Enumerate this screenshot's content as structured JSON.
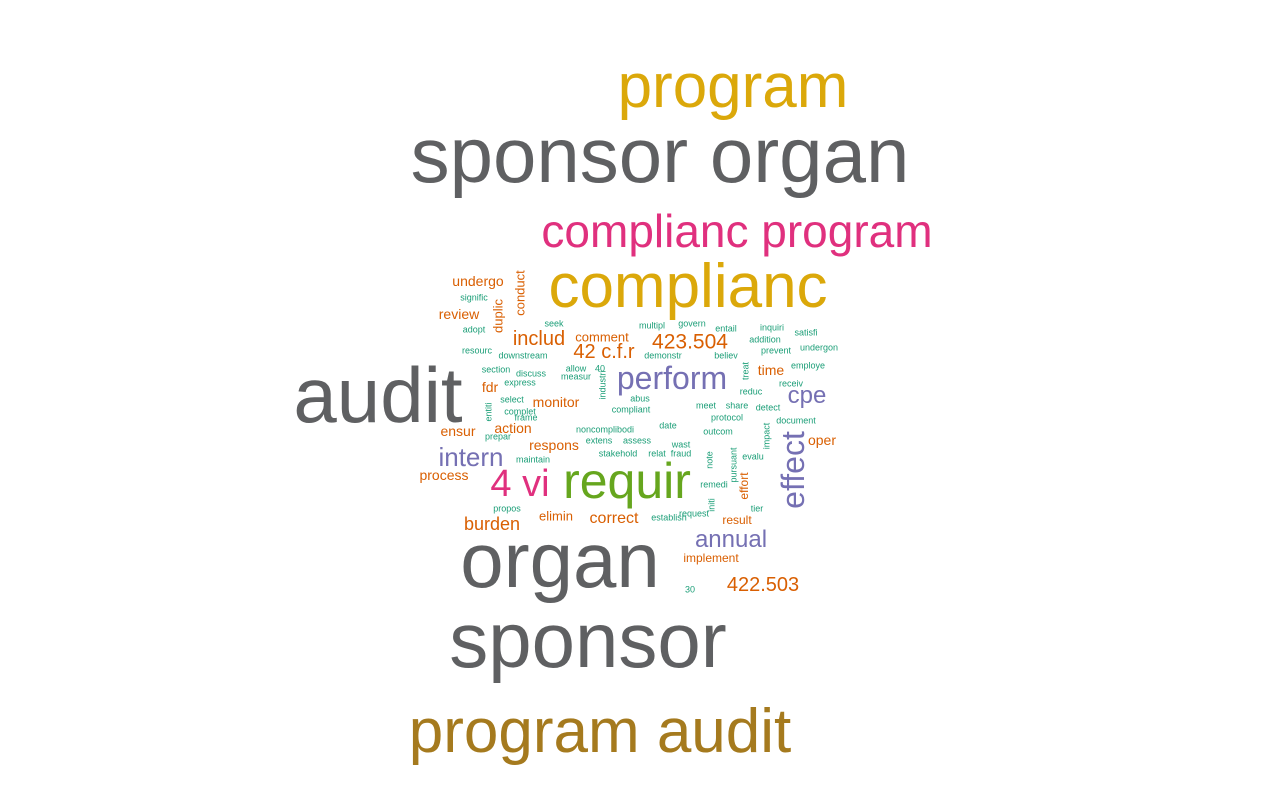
{
  "palette": {
    "gray": "#5f6062",
    "gold": "#dba80a",
    "brown": "#a57a1e",
    "pink": "#e0307e",
    "green": "#66a61e",
    "purple": "#7570b3",
    "orange": "#d95f02",
    "teal": "#1b9e77"
  },
  "words": [
    {
      "text": "sponsor organ",
      "color": "gray"
    },
    {
      "text": "audit",
      "color": "gray"
    },
    {
      "text": "organ",
      "color": "gray"
    },
    {
      "text": "sponsor",
      "color": "gray"
    },
    {
      "text": "program",
      "color": "gold"
    },
    {
      "text": "complianc",
      "color": "gold"
    },
    {
      "text": "program audit",
      "color": "brown"
    },
    {
      "text": "complianc program",
      "color": "pink"
    },
    {
      "text": "requir",
      "color": "green"
    },
    {
      "text": "4 vi",
      "color": "pink"
    },
    {
      "text": "perform",
      "color": "purple"
    },
    {
      "text": "effect",
      "color": "purple"
    },
    {
      "text": "intern",
      "color": "purple"
    },
    {
      "text": "cpe",
      "color": "purple"
    },
    {
      "text": "annual",
      "color": "purple"
    },
    {
      "text": "423.504",
      "color": "orange"
    },
    {
      "text": "42 c.f.r",
      "color": "orange"
    },
    {
      "text": "includ",
      "color": "orange"
    },
    {
      "text": "422.503",
      "color": "orange"
    },
    {
      "text": "burden",
      "color": "orange"
    },
    {
      "text": "correct",
      "color": "orange"
    },
    {
      "text": "undergo",
      "color": "orange"
    },
    {
      "text": "review",
      "color": "orange"
    },
    {
      "text": "duplic",
      "color": "orange"
    },
    {
      "text": "conduct",
      "color": "orange"
    },
    {
      "text": "fdr",
      "color": "orange"
    },
    {
      "text": "monitor",
      "color": "orange"
    },
    {
      "text": "action",
      "color": "orange"
    },
    {
      "text": "ensur",
      "color": "orange"
    },
    {
      "text": "respons",
      "color": "orange"
    },
    {
      "text": "process",
      "color": "orange"
    },
    {
      "text": "time",
      "color": "orange"
    },
    {
      "text": "oper",
      "color": "orange"
    },
    {
      "text": "comment",
      "color": "orange"
    },
    {
      "text": "elimin",
      "color": "orange"
    },
    {
      "text": "result",
      "color": "orange"
    },
    {
      "text": "implement",
      "color": "orange"
    },
    {
      "text": "effort",
      "color": "orange"
    },
    {
      "text": "signific",
      "color": "teal"
    },
    {
      "text": "adopt",
      "color": "teal"
    },
    {
      "text": "resourc",
      "color": "teal"
    },
    {
      "text": "seek",
      "color": "teal"
    },
    {
      "text": "multipl",
      "color": "teal"
    },
    {
      "text": "govern",
      "color": "teal"
    },
    {
      "text": "entail",
      "color": "teal"
    },
    {
      "text": "inquiri",
      "color": "teal"
    },
    {
      "text": "satisfi",
      "color": "teal"
    },
    {
      "text": "addition",
      "color": "teal"
    },
    {
      "text": "prevent",
      "color": "teal"
    },
    {
      "text": "undergon",
      "color": "teal"
    },
    {
      "text": "downstream",
      "color": "teal"
    },
    {
      "text": "demonstr",
      "color": "teal"
    },
    {
      "text": "believ",
      "color": "teal"
    },
    {
      "text": "section",
      "color": "teal"
    },
    {
      "text": "discuss",
      "color": "teal"
    },
    {
      "text": "allow",
      "color": "teal"
    },
    {
      "text": "40",
      "color": "teal"
    },
    {
      "text": "treat",
      "color": "teal"
    },
    {
      "text": "employe",
      "color": "teal"
    },
    {
      "text": "express",
      "color": "teal"
    },
    {
      "text": "measur",
      "color": "teal"
    },
    {
      "text": "industri",
      "color": "teal"
    },
    {
      "text": "receiv",
      "color": "teal"
    },
    {
      "text": "select",
      "color": "teal"
    },
    {
      "text": "frame",
      "color": "teal"
    },
    {
      "text": "abus",
      "color": "teal"
    },
    {
      "text": "reduc",
      "color": "teal"
    },
    {
      "text": "entiti",
      "color": "teal"
    },
    {
      "text": "complet",
      "color": "teal"
    },
    {
      "text": "compliant",
      "color": "teal"
    },
    {
      "text": "meet",
      "color": "teal"
    },
    {
      "text": "share",
      "color": "teal"
    },
    {
      "text": "detect",
      "color": "teal"
    },
    {
      "text": "protocol",
      "color": "teal"
    },
    {
      "text": "document",
      "color": "teal"
    },
    {
      "text": "noncomplibodi",
      "color": "teal"
    },
    {
      "text": "date",
      "color": "teal"
    },
    {
      "text": "prepar",
      "color": "teal"
    },
    {
      "text": "outcom",
      "color": "teal"
    },
    {
      "text": "impact",
      "color": "teal"
    },
    {
      "text": "extens",
      "color": "teal"
    },
    {
      "text": "assess",
      "color": "teal"
    },
    {
      "text": "wast",
      "color": "teal"
    },
    {
      "text": "pursuant",
      "color": "teal"
    },
    {
      "text": "maintain",
      "color": "teal"
    },
    {
      "text": "stakehold",
      "color": "teal"
    },
    {
      "text": "relat",
      "color": "teal"
    },
    {
      "text": "fraud",
      "color": "teal"
    },
    {
      "text": "note",
      "color": "teal"
    },
    {
      "text": "evalu",
      "color": "teal"
    },
    {
      "text": "remedi",
      "color": "teal"
    },
    {
      "text": "initi",
      "color": "teal"
    },
    {
      "text": "propos",
      "color": "teal"
    },
    {
      "text": "establish",
      "color": "teal"
    },
    {
      "text": "request",
      "color": "teal"
    },
    {
      "text": "tier",
      "color": "teal"
    },
    {
      "text": "30",
      "color": "teal"
    },
    {
      "text": "inquir",
      "color": "teal"
    }
  ]
}
